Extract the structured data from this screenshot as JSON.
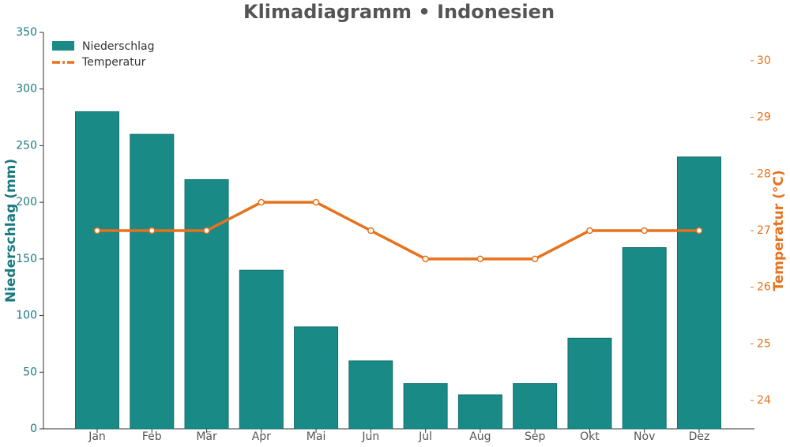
{
  "chart_data": {
    "type": "bar-line",
    "title": "Klimadiagramm • Indonesien",
    "categories": [
      "Jan",
      "Feb",
      "Mär",
      "Apr",
      "Mai",
      "Jun",
      "Jul",
      "Aug",
      "Sep",
      "Okt",
      "Nov",
      "Dez"
    ],
    "series": [
      {
        "name": "Niederschlag",
        "type": "bar",
        "color": "#1a8a87",
        "values": [
          280,
          260,
          220,
          140,
          90,
          60,
          40,
          30,
          40,
          80,
          160,
          240
        ]
      },
      {
        "name": "Temperatur",
        "type": "line",
        "axis": "y2",
        "color": "#e8711c",
        "values": [
          27,
          27,
          27,
          27.5,
          27.5,
          27,
          26.5,
          26.5,
          26.5,
          27,
          27,
          27
        ]
      }
    ],
    "ylabel": "Niederschlag (mm)",
    "y2label": "Temperatur (°C)",
    "ylim": [
      0,
      350
    ],
    "yticks": [
      0,
      50,
      100,
      150,
      200,
      250,
      300,
      350
    ],
    "y2lim": [
      23.5,
      30.5
    ],
    "y2ticks": [
      24,
      25,
      26,
      27,
      28,
      29,
      30
    ],
    "legend": "upper-left"
  }
}
